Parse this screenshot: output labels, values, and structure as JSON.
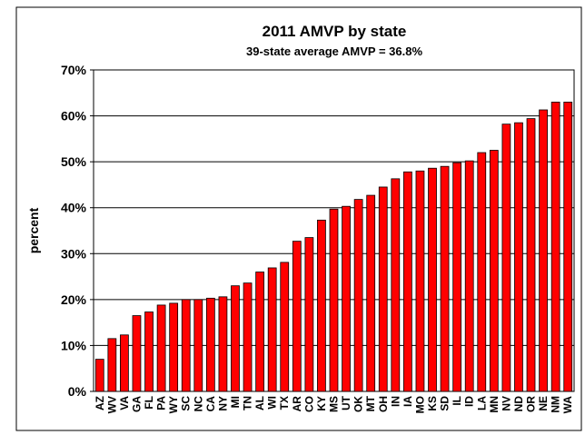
{
  "chart_data": {
    "type": "bar",
    "title": "2011 AMVP by state",
    "subtitle": "39-state average AMVP = 36.8%",
    "ylabel": "percent",
    "categories": [
      "AZ",
      "WV",
      "VA",
      "GA",
      "FL",
      "PA",
      "WY",
      "SC",
      "NC",
      "CA",
      "NY",
      "MI",
      "TN",
      "AL",
      "WI",
      "TX",
      "AR",
      "CO",
      "KY",
      "MS",
      "UT",
      "OK",
      "MT",
      "OH",
      "IN",
      "IA",
      "MO",
      "KS",
      "SD",
      "IL",
      "ID",
      "LA",
      "MN",
      "NV",
      "ND",
      "OR",
      "NE",
      "NM",
      "WA"
    ],
    "values": [
      7,
      11.5,
      12.3,
      16.5,
      17.3,
      18.8,
      19.2,
      20,
      20,
      20.3,
      20.6,
      23,
      23.6,
      26,
      26.9,
      28.1,
      32.7,
      33.5,
      37.3,
      39.7,
      40.3,
      41.8,
      42.7,
      44.5,
      46.3,
      47.8,
      48,
      48.6,
      49,
      49.8,
      50.2,
      52,
      52.5,
      58.2,
      58.5,
      59.4,
      61.3,
      63,
      63
    ],
    "color": "#ff0000",
    "ylim": [
      0,
      70
    ],
    "yticks": [
      {
        "value": 0,
        "label": "0%"
      },
      {
        "value": 10,
        "label": "10%"
      },
      {
        "value": 20,
        "label": "20%"
      },
      {
        "value": 30,
        "label": "30%"
      },
      {
        "value": 40,
        "label": "40%"
      },
      {
        "value": 50,
        "label": "50%"
      },
      {
        "value": 60,
        "label": "60%"
      },
      {
        "value": 70,
        "label": "70%"
      }
    ],
    "grid": true
  }
}
